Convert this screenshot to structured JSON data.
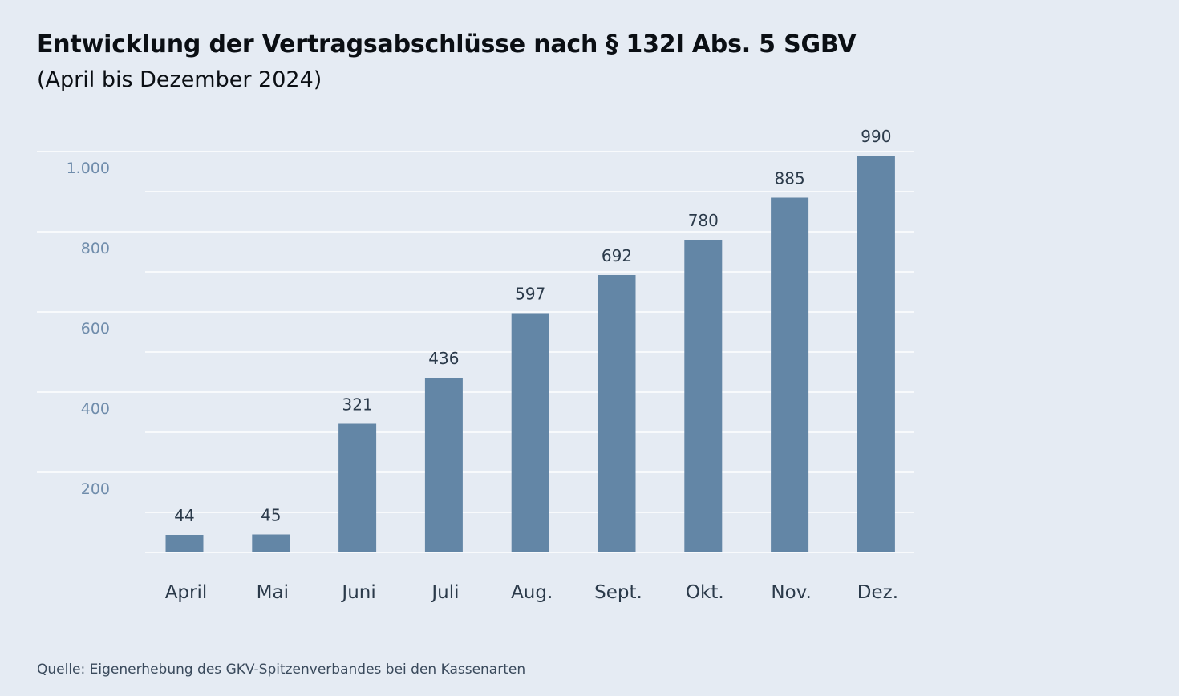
{
  "header": {
    "title": "Entwicklung der Vertragsabschlüsse nach § 132l Abs. 5 SGBV",
    "subtitle": "(April bis Dezember 2024)"
  },
  "footer": {
    "source": "Quelle: Eigenerhebung des GKV-Spitzenverbandes bei den Kassenarten"
  },
  "colors": {
    "background": "#e5ebf3",
    "bar": "#6386a6",
    "grid": "#ffffff",
    "y_tick_label": "#6f8cab",
    "x_tick_label": "#2b3a4a",
    "data_label": "#2b3a4a"
  },
  "chart_data": {
    "type": "bar",
    "title": "Entwicklung der Vertragsabschlüsse nach § 132l Abs. 5 SGBV",
    "subtitle": "(April bis Dezember 2024)",
    "xlabel": "",
    "ylabel": "",
    "categories": [
      "April",
      "Mai",
      "Juni",
      "Juli",
      "Aug.",
      "Sept.",
      "Okt.",
      "Nov.",
      "Dez."
    ],
    "values": [
      44,
      45,
      321,
      436,
      597,
      692,
      780,
      885,
      990
    ],
    "data_labels": [
      "44",
      "45",
      "321",
      "436",
      "597",
      "692",
      "780",
      "885",
      "990"
    ],
    "ylim": [
      0,
      1000
    ],
    "y_ticks": [
      200,
      400,
      600,
      800,
      1000
    ],
    "y_tick_labels": [
      "200",
      "400",
      "600",
      "800",
      "1.000"
    ],
    "grid": true,
    "legend": "none"
  }
}
